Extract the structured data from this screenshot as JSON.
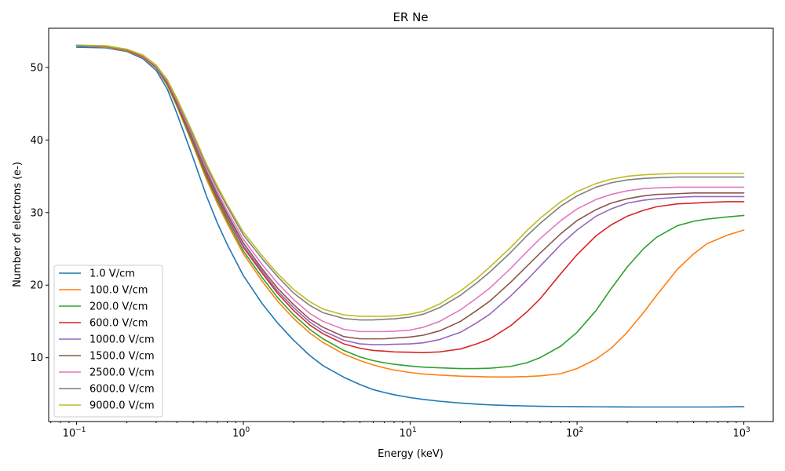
{
  "chart_data": {
    "type": "line",
    "title": "ER Ne",
    "xlabel": "Energy (keV)",
    "ylabel": "Number of electrons (e-)",
    "xscale": "log",
    "xlim": [
      0.068,
      1500
    ],
    "ylim": [
      1.2,
      55.4
    ],
    "grid": false,
    "legend_position": "lower-left",
    "x_ticks": [
      {
        "value": 0.1,
        "base": "10",
        "exp": "−1"
      },
      {
        "value": 1,
        "base": "10",
        "exp": "0"
      },
      {
        "value": 10,
        "base": "10",
        "exp": "1"
      },
      {
        "value": 100,
        "base": "10",
        "exp": "2"
      },
      {
        "value": 1000,
        "base": "10",
        "exp": "3"
      }
    ],
    "y_ticks": [
      10,
      20,
      30,
      40,
      50
    ],
    "x": [
      0.1,
      0.15,
      0.2,
      0.25,
      0.3,
      0.35,
      0.4,
      0.5,
      0.6,
      0.7,
      0.8,
      1,
      1.3,
      1.6,
      2,
      2.5,
      3,
      4,
      5,
      6,
      7,
      8,
      10,
      12,
      15,
      20,
      25,
      30,
      40,
      50,
      60,
      80,
      100,
      130,
      160,
      200,
      250,
      300,
      400,
      500,
      600,
      800,
      1000
    ],
    "series": [
      {
        "name": "1.0 V/cm",
        "color": "#1f77b4",
        "values": [
          52.8,
          52.7,
          52.2,
          51.2,
          49.6,
          47.0,
          43.6,
          37.5,
          32.3,
          28.5,
          25.6,
          21.3,
          17.4,
          14.8,
          12.4,
          10.3,
          8.9,
          7.3,
          6.3,
          5.6,
          5.2,
          4.9,
          4.5,
          4.25,
          4.0,
          3.75,
          3.6,
          3.5,
          3.4,
          3.35,
          3.3,
          3.27,
          3.25,
          3.23,
          3.22,
          3.21,
          3.2,
          3.2,
          3.2,
          3.2,
          3.2,
          3.22,
          3.25
        ]
      },
      {
        "name": "100.0 V/cm",
        "color": "#ff7f0e",
        "values": [
          53.0,
          52.8,
          52.3,
          51.4,
          49.9,
          47.5,
          44.6,
          39.2,
          34.6,
          31.2,
          28.5,
          24.3,
          20.5,
          17.8,
          15.4,
          13.4,
          12.1,
          10.5,
          9.6,
          9.0,
          8.6,
          8.3,
          7.95,
          7.75,
          7.6,
          7.45,
          7.4,
          7.35,
          7.35,
          7.4,
          7.5,
          7.8,
          8.5,
          9.8,
          11.3,
          13.5,
          16.2,
          18.6,
          22.2,
          24.3,
          25.7,
          26.9,
          27.6
        ]
      },
      {
        "name": "200.0 V/cm",
        "color": "#2ca02c",
        "values": [
          53.0,
          52.9,
          52.4,
          51.5,
          50.0,
          47.7,
          44.8,
          39.5,
          35.0,
          31.6,
          28.9,
          24.7,
          21.0,
          18.3,
          15.9,
          13.9,
          12.6,
          11.0,
          10.1,
          9.6,
          9.3,
          9.1,
          8.85,
          8.7,
          8.6,
          8.5,
          8.5,
          8.55,
          8.8,
          9.3,
          10.0,
          11.6,
          13.5,
          16.5,
          19.5,
          22.5,
          25.0,
          26.6,
          28.2,
          28.8,
          29.1,
          29.4,
          29.6
        ]
      },
      {
        "name": "600.0 V/cm",
        "color": "#d62728",
        "values": [
          53.0,
          52.9,
          52.4,
          51.5,
          50.1,
          47.8,
          45.0,
          39.8,
          35.3,
          32.0,
          29.3,
          25.2,
          21.6,
          18.9,
          16.5,
          14.5,
          13.3,
          11.9,
          11.3,
          11.0,
          10.9,
          10.8,
          10.75,
          10.7,
          10.8,
          11.2,
          11.9,
          12.6,
          14.4,
          16.3,
          18.1,
          21.6,
          24.2,
          26.8,
          28.3,
          29.5,
          30.3,
          30.8,
          31.2,
          31.3,
          31.4,
          31.5,
          31.5
        ]
      },
      {
        "name": "1000.0 V/cm",
        "color": "#9467bd",
        "values": [
          53.0,
          52.9,
          52.4,
          51.6,
          50.1,
          47.9,
          45.1,
          39.9,
          35.5,
          32.2,
          29.5,
          25.4,
          21.9,
          19.2,
          16.9,
          14.9,
          13.7,
          12.4,
          11.9,
          11.8,
          11.8,
          11.85,
          11.9,
          12.05,
          12.5,
          13.5,
          14.8,
          16.0,
          18.5,
          20.7,
          22.6,
          25.6,
          27.6,
          29.5,
          30.5,
          31.3,
          31.7,
          31.9,
          32.1,
          32.2,
          32.2,
          32.2,
          32.2
        ]
      },
      {
        "name": "1500.0 V/cm",
        "color": "#8c564b",
        "values": [
          53.0,
          52.9,
          52.4,
          51.6,
          50.2,
          48.0,
          45.2,
          40.1,
          35.7,
          32.4,
          29.8,
          25.8,
          22.2,
          19.6,
          17.3,
          15.3,
          14.2,
          12.9,
          12.6,
          12.6,
          12.6,
          12.7,
          12.85,
          13.1,
          13.7,
          15.0,
          16.5,
          17.8,
          20.4,
          22.6,
          24.4,
          27.1,
          28.9,
          30.4,
          31.3,
          31.9,
          32.3,
          32.5,
          32.6,
          32.7,
          32.7,
          32.7,
          32.7
        ]
      },
      {
        "name": "2500.0 V/cm",
        "color": "#e377c2",
        "values": [
          53.0,
          52.9,
          52.5,
          51.6,
          50.2,
          48.1,
          45.4,
          40.4,
          36.0,
          32.8,
          30.2,
          26.3,
          22.8,
          20.3,
          18.0,
          16.1,
          15.0,
          13.9,
          13.6,
          13.6,
          13.6,
          13.65,
          13.8,
          14.2,
          15.0,
          16.6,
          18.2,
          19.6,
          22.3,
          24.6,
          26.4,
          28.9,
          30.5,
          31.8,
          32.5,
          33.0,
          33.3,
          33.4,
          33.5,
          33.5,
          33.5,
          33.5,
          33.5
        ]
      },
      {
        "name": "6000.0 V/cm",
        "color": "#7f7f7f",
        "values": [
          53.0,
          52.9,
          52.5,
          51.7,
          50.3,
          48.2,
          45.6,
          40.7,
          36.4,
          33.3,
          30.8,
          26.9,
          23.6,
          21.2,
          18.9,
          17.2,
          16.2,
          15.4,
          15.2,
          15.2,
          15.3,
          15.35,
          15.6,
          16.0,
          16.9,
          18.6,
          20.3,
          21.8,
          24.5,
          26.8,
          28.5,
          30.9,
          32.3,
          33.5,
          34.1,
          34.5,
          34.7,
          34.8,
          34.9,
          34.9,
          34.9,
          34.9,
          34.9
        ]
      },
      {
        "name": "9000.0 V/cm",
        "color": "#bcbd22",
        "values": [
          53.1,
          53.0,
          52.5,
          51.7,
          50.3,
          48.3,
          45.7,
          40.9,
          36.7,
          33.6,
          31.1,
          27.3,
          24.0,
          21.6,
          19.4,
          17.7,
          16.7,
          15.9,
          15.7,
          15.7,
          15.7,
          15.75,
          16.0,
          16.4,
          17.4,
          19.2,
          20.9,
          22.5,
          25.2,
          27.5,
          29.2,
          31.5,
          32.9,
          34.0,
          34.6,
          35.0,
          35.2,
          35.3,
          35.4,
          35.4,
          35.4,
          35.4,
          35.4
        ]
      }
    ]
  }
}
